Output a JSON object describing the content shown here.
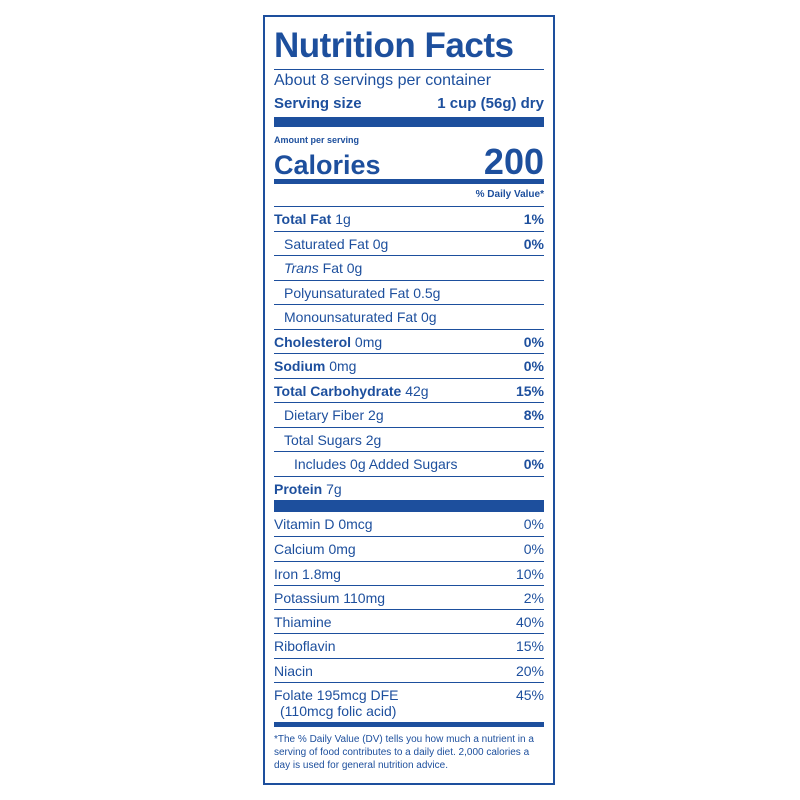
{
  "title": "Nutrition Facts",
  "servings": "About 8 servings per container",
  "serving_size": {
    "label": "Serving size",
    "value": "1 cup (56g) dry"
  },
  "amount_per_serving": "Amount per serving",
  "calories": {
    "label": "Calories",
    "value": "200"
  },
  "dv_header": "% Daily Value*",
  "nutrients": [
    {
      "name": "Total Fat",
      "amount": "1g",
      "dv": "1%"
    },
    {
      "name": "Saturated Fat",
      "amount": "0g",
      "dv": "0%"
    },
    {
      "name_italic": "Trans",
      "name": "Fat",
      "amount": "0g"
    },
    {
      "name": "Polyunsaturated Fat",
      "amount": "0.5g"
    },
    {
      "name": "Monounsaturated Fat",
      "amount": "0g"
    },
    {
      "name": "Cholesterol",
      "amount": "0mg",
      "dv": "0%"
    },
    {
      "name": "Sodium",
      "amount": "0mg",
      "dv": "0%"
    },
    {
      "name": "Total Carbohydrate",
      "amount": "42g",
      "dv": "15%"
    },
    {
      "name": "Dietary Fiber",
      "amount": "2g",
      "dv": "8%"
    },
    {
      "name": "Total Sugars",
      "amount": "2g"
    },
    {
      "name": "Includes 0g Added Sugars",
      "dv": "0%"
    },
    {
      "name": "Protein",
      "amount": "7g"
    }
  ],
  "vitamins": [
    {
      "name": "Vitamin D 0mcg",
      "dv": "0%"
    },
    {
      "name": "Calcium 0mg",
      "dv": "0%"
    },
    {
      "name": "Iron 1.8mg",
      "dv": "10%"
    },
    {
      "name": "Potassium 110mg",
      "dv": "2%"
    },
    {
      "name": "Thiamine",
      "dv": "40%"
    },
    {
      "name": "Riboflavin",
      "dv": "15%"
    },
    {
      "name": "Niacin",
      "dv": "20%"
    },
    {
      "name": "Folate 195mcg DFE",
      "note": "(110mcg folic acid)",
      "dv": "45%"
    }
  ],
  "footnote": "*The % Daily Value (DV) tells you how much a nutrient in a serving of food contributes to a daily diet. 2,000 calories a day is used for general nutrition advice."
}
